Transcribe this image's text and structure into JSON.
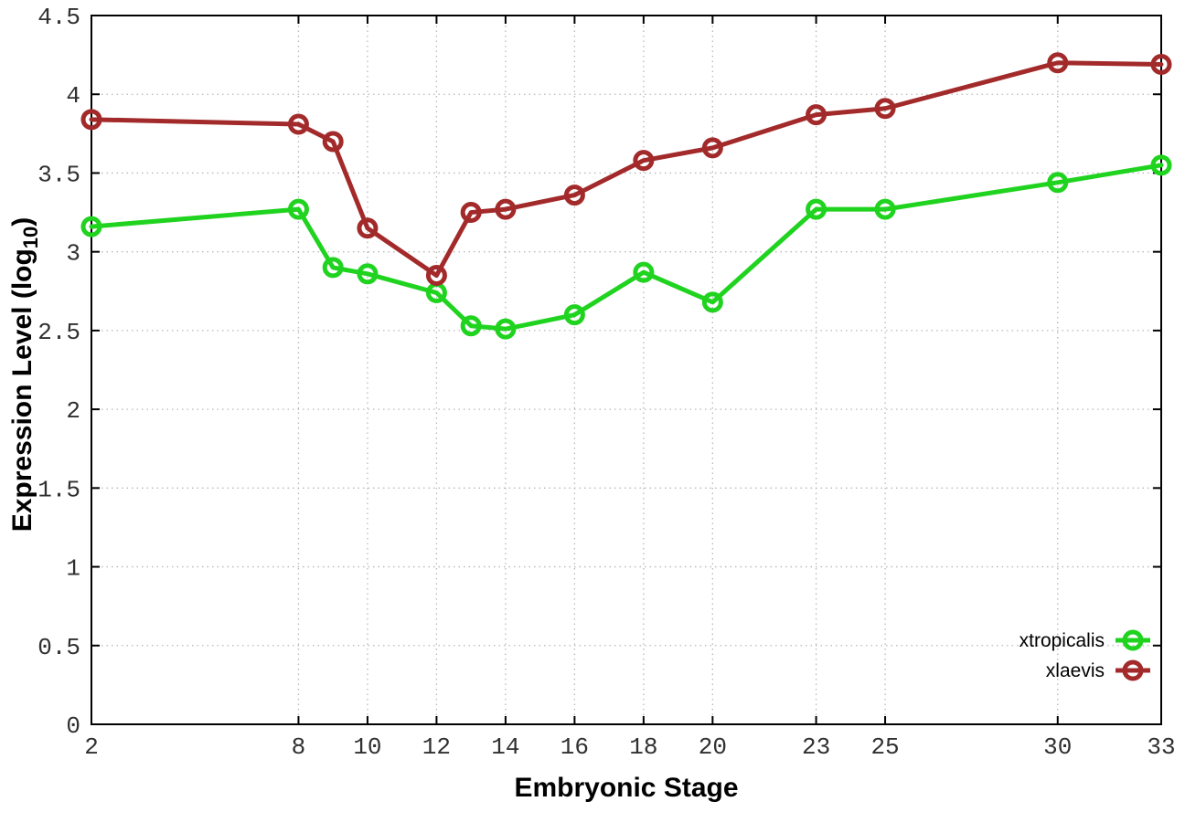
{
  "chart_data": {
    "type": "line",
    "title": "",
    "xlabel": "Embryonic Stage",
    "ylabel": "Expression Level (log10)",
    "ylabel_parts": {
      "prefix": "Expression Level (log",
      "sub": "10",
      "suffix": ")"
    },
    "xlim": [
      2,
      33
    ],
    "ylim": [
      0,
      4.5
    ],
    "grid": true,
    "legend_position": "bottom-right-inside",
    "x_ticks": [
      2,
      8,
      10,
      12,
      14,
      16,
      18,
      20,
      23,
      25,
      30,
      33
    ],
    "x_tick_labels": [
      "2",
      "8",
      "10",
      "12",
      "14",
      "16",
      "18",
      "20",
      "23",
      "25",
      "30",
      "33"
    ],
    "y_ticks": [
      0,
      0.5,
      1,
      1.5,
      2,
      2.5,
      3,
      3.5,
      4,
      4.5
    ],
    "y_tick_labels": [
      "0",
      "0.5",
      "1",
      "1.5",
      "2",
      "2.5",
      "3",
      "3.5",
      "4",
      "4.5"
    ],
    "x": [
      2,
      8,
      9,
      10,
      12,
      13,
      14,
      16,
      18,
      20,
      23,
      25,
      30,
      33
    ],
    "series": [
      {
        "name": "xtropicalis",
        "color": "#1fd31f",
        "values": [
          3.16,
          3.27,
          2.9,
          2.86,
          2.74,
          2.53,
          2.51,
          2.6,
          2.87,
          2.68,
          3.27,
          3.27,
          3.44,
          3.55
        ]
      },
      {
        "name": "xlaevis",
        "color": "#a32a2a",
        "values": [
          3.84,
          3.81,
          3.7,
          3.15,
          2.85,
          3.25,
          3.27,
          3.36,
          3.58,
          3.66,
          3.87,
          3.91,
          4.2,
          4.19
        ]
      }
    ],
    "colors": {
      "grid": "#b8b8b8",
      "axis": "#000000",
      "tick_text": "#303030",
      "background": "#ffffff"
    }
  }
}
